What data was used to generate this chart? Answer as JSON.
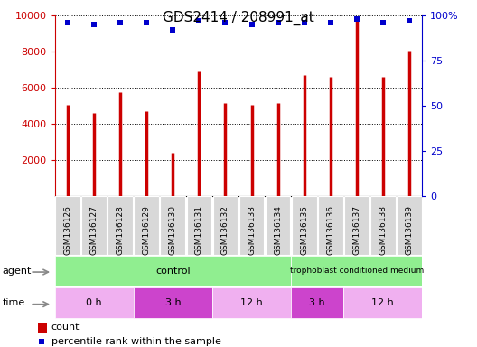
{
  "title": "GDS2414 / 208991_at",
  "samples": [
    "GSM136126",
    "GSM136127",
    "GSM136128",
    "GSM136129",
    "GSM136130",
    "GSM136131",
    "GSM136132",
    "GSM136133",
    "GSM136134",
    "GSM136135",
    "GSM136136",
    "GSM136137",
    "GSM136138",
    "GSM136139"
  ],
  "counts": [
    5050,
    4600,
    5750,
    4700,
    2400,
    6900,
    5150,
    5050,
    5150,
    6700,
    6600,
    9700,
    6600,
    8050
  ],
  "percentile_ranks": [
    96,
    95,
    96,
    96,
    92,
    97,
    96,
    95,
    96,
    96,
    96,
    98,
    96,
    97
  ],
  "bar_color": "#cc0000",
  "dot_color": "#0000cc",
  "ylim_left": [
    0,
    10000
  ],
  "ylim_right": [
    0,
    100
  ],
  "yticks_left": [
    2000,
    4000,
    6000,
    8000,
    10000
  ],
  "yticks_right": [
    0,
    25,
    50,
    75,
    100
  ],
  "agent_groups": [
    {
      "label": "control",
      "start": 0,
      "end": 9,
      "color": "#90ee90"
    },
    {
      "label": "trophoblast conditioned medium",
      "start": 9,
      "end": 14,
      "color": "#90ee90"
    }
  ],
  "time_groups": [
    {
      "label": "0 h",
      "start": 0,
      "end": 3,
      "color": "#f0b0f0"
    },
    {
      "label": "3 h",
      "start": 3,
      "end": 6,
      "color": "#cc44cc"
    },
    {
      "label": "12 h",
      "start": 6,
      "end": 9,
      "color": "#f0b0f0"
    },
    {
      "label": "3 h",
      "start": 9,
      "end": 11,
      "color": "#cc44cc"
    },
    {
      "label": "12 h",
      "start": 11,
      "end": 14,
      "color": "#f0b0f0"
    }
  ],
  "tick_label_color_left": "#cc0000",
  "tick_label_color_right": "#0000cc",
  "xtick_bg_color": "#d8d8d8",
  "bar_width": 0.07
}
